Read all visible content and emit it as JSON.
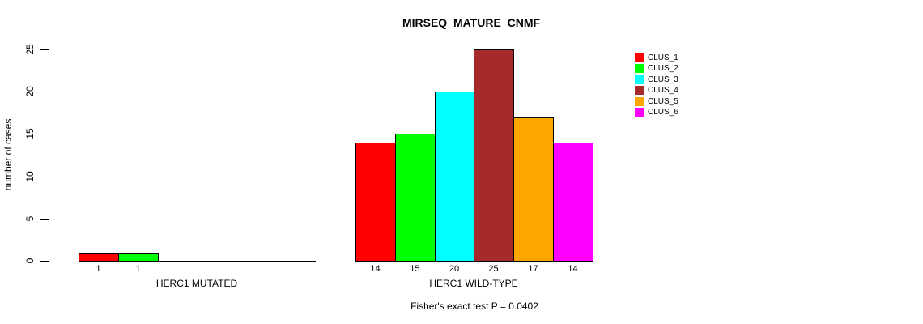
{
  "chart_data": {
    "type": "bar",
    "title": "MIRSEQ_MATURE_CNMF",
    "ylabel": "number of cases",
    "xlabel": "",
    "footnote": "Fisher's exact test P = 0.0402",
    "categories": [
      "HERC1 MUTATED",
      "HERC1 WILD-TYPE"
    ],
    "series": [
      {
        "name": "CLUS_1",
        "color": "#ff0000",
        "values": [
          1,
          14
        ]
      },
      {
        "name": "CLUS_2",
        "color": "#00ff00",
        "values": [
          1,
          15
        ]
      },
      {
        "name": "CLUS_3",
        "color": "#00ffff",
        "values": [
          0,
          20
        ]
      },
      {
        "name": "CLUS_4",
        "color": "#a52a2a",
        "values": [
          0,
          25
        ]
      },
      {
        "name": "CLUS_5",
        "color": "#ffa500",
        "values": [
          0,
          17
        ]
      },
      {
        "name": "CLUS_6",
        "color": "#ff00ff",
        "values": [
          0,
          14
        ]
      }
    ],
    "bar_value_labels": {
      "show": true,
      "hide_zero": true
    },
    "yticks": [
      0,
      5,
      10,
      15,
      20,
      25
    ],
    "ylim": [
      0,
      25
    ],
    "grid": false,
    "legend": {
      "position": "right",
      "entries": [
        "CLUS_1",
        "CLUS_2",
        "CLUS_3",
        "CLUS_4",
        "CLUS_5",
        "CLUS_6"
      ]
    },
    "colors": {
      "axis": "#000000",
      "bar_border": "#000000",
      "text": "#000000",
      "background": "#ffffff"
    }
  }
}
